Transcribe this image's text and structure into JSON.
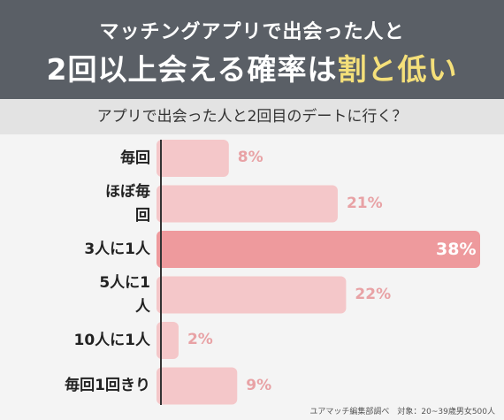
{
  "header": {
    "line1": "マッチングアプリで出会った人と",
    "line2_main": "2回以上会える確率は",
    "line2_highlight": "割と低い"
  },
  "question": "アプリで出会った人と2回目のデートに行く？",
  "footer": "ユアマッチ編集部調べ　対象：20~39歳男女500人",
  "colors": {
    "header_bg": "#5a5f66",
    "highlight_text": "#f5e07a",
    "bar": "#f4c7c9",
    "bar_highlight": "#ee9a9d",
    "pct_text": "#e8a2a5",
    "pct_text_highlight": "#ffffff"
  },
  "chart_data": {
    "type": "bar",
    "orientation": "horizontal",
    "categories": [
      "毎回",
      "ほぼ毎回",
      "3人に1人",
      "5人に1人",
      "10人に1人",
      "毎回1回きり"
    ],
    "display_labels": [
      [
        "毎回"
      ],
      [
        "ほぼ毎",
        "回"
      ],
      [
        "3人に1人"
      ],
      [
        "5人に1",
        "人"
      ],
      [
        "10人に1人"
      ],
      [
        "毎回1回きり"
      ]
    ],
    "values": [
      8,
      21,
      38,
      22,
      2,
      9
    ],
    "value_labels": [
      "8%",
      "21%",
      "38%",
      "22%",
      "2%",
      "9%"
    ],
    "highlight_index": 2,
    "xlim": [
      0,
      38
    ]
  }
}
